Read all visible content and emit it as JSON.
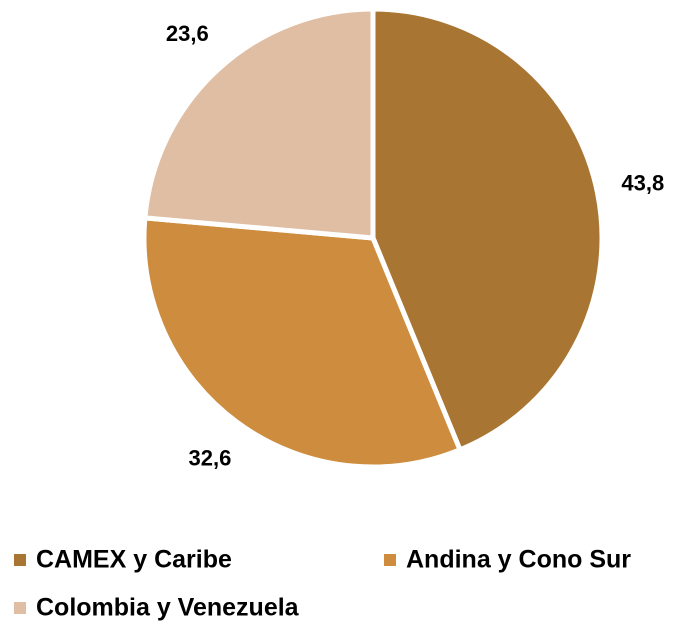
{
  "chart_data": {
    "type": "pie",
    "categories": [
      "CAMEX y Caribe",
      "Andina y Cono Sur",
      "Colombia y Venezuela"
    ],
    "values": [
      43.8,
      32.6,
      23.6
    ],
    "value_labels": [
      "43,8",
      "32,6",
      "23,6"
    ],
    "colors": [
      "#a87533",
      "#ce8c3e",
      "#e0bea3"
    ],
    "legend": "bottom"
  }
}
